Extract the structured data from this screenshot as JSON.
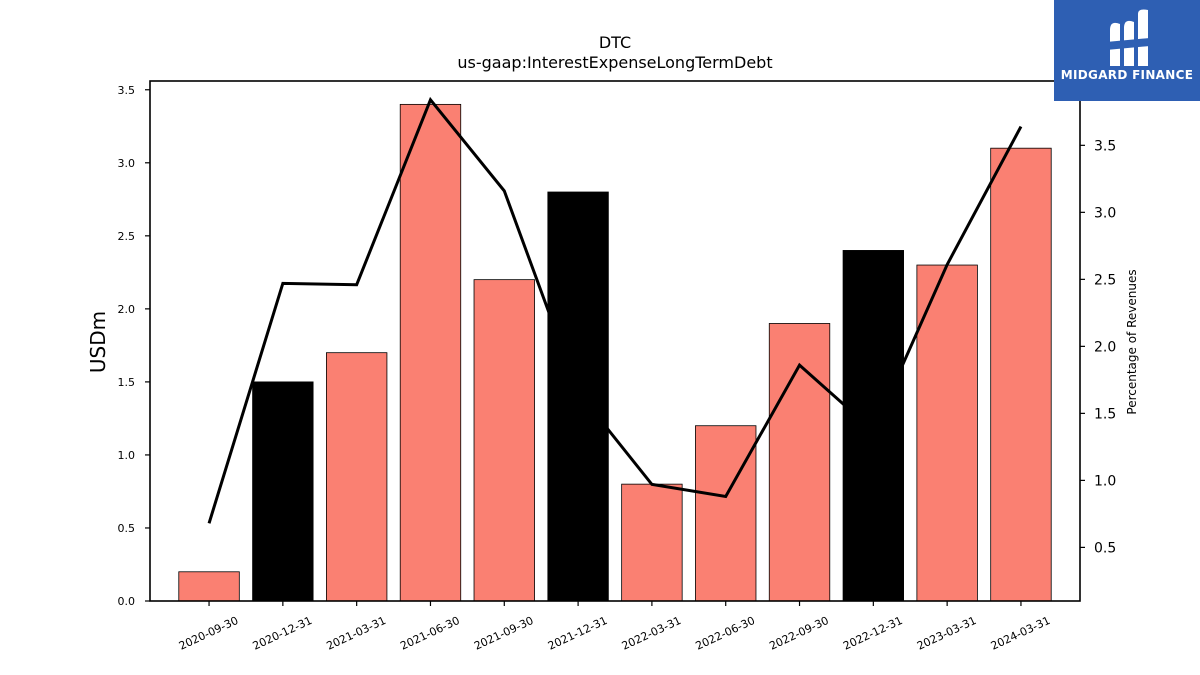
{
  "chart_data": {
    "type": "bar",
    "title": "DTC",
    "subtitle": "us-gaap:InterestExpenseLongTermDebt",
    "ylabel": "USDm",
    "y2label": "Percentage of Revenues",
    "categories": [
      "2020-09-30",
      "2020-12-31",
      "2021-03-31",
      "2021-06-30",
      "2021-09-30",
      "2021-12-31",
      "2022-03-31",
      "2022-06-30",
      "2022-09-30",
      "2022-12-31",
      "2023-03-31",
      "2024-03-31"
    ],
    "bar_values": [
      0.2,
      1.5,
      1.7,
      3.4,
      2.2,
      2.8,
      0.8,
      1.2,
      1.9,
      2.4,
      2.3,
      3.1
    ],
    "bar_colors": [
      "#fa8072",
      "#000000",
      "#fa8072",
      "#fa8072",
      "#fa8072",
      "#000000",
      "#fa8072",
      "#fa8072",
      "#fa8072",
      "#000000",
      "#fa8072",
      "#fa8072"
    ],
    "line_values": [
      0.68,
      2.47,
      2.46,
      3.84,
      3.16,
      1.66,
      0.97,
      0.88,
      1.86,
      1.37,
      2.61,
      3.64
    ],
    "ylim": [
      0,
      3.56
    ],
    "y2lim": [
      0.1,
      3.98
    ],
    "yticks": [
      "0.0",
      "0.5",
      "1.0",
      "1.5",
      "2.0",
      "2.5",
      "3.0",
      "3.5"
    ],
    "y2ticks": [
      "0.5",
      "1.0",
      "1.5",
      "2.0",
      "2.5",
      "3.0",
      "3.5"
    ],
    "grid": false,
    "legend": "none"
  },
  "logo": {
    "text": "MIDGARD FINANCE",
    "color": "#2e5fb3"
  }
}
